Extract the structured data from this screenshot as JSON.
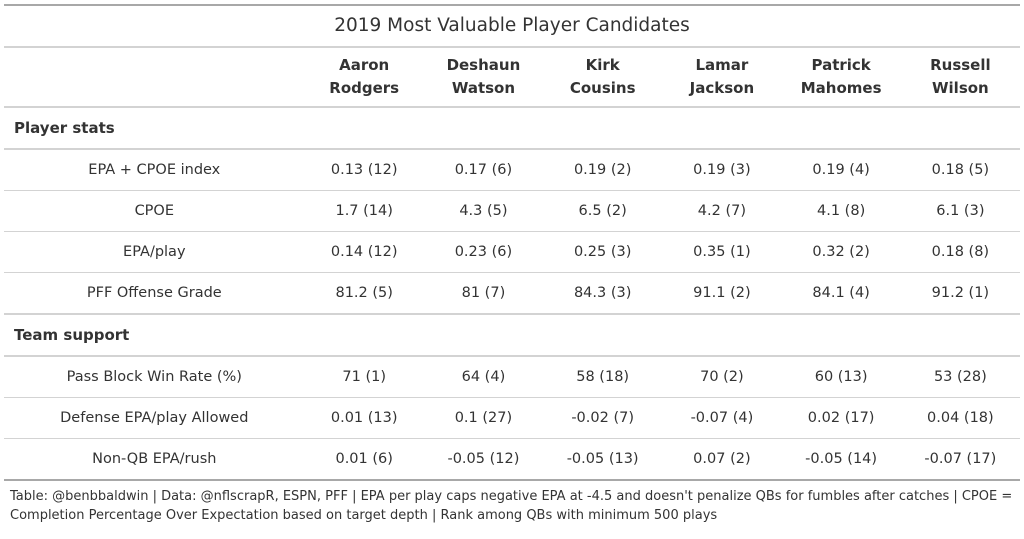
{
  "title": "2019 Most Valuable Player Candidates",
  "columns": [
    {
      "first": "Aaron",
      "last": "Rodgers"
    },
    {
      "first": "Deshaun",
      "last": "Watson"
    },
    {
      "first": "Kirk",
      "last": "Cousins"
    },
    {
      "first": "Lamar",
      "last": "Jackson"
    },
    {
      "first": "Patrick",
      "last": "Mahomes"
    },
    {
      "first": "Russell",
      "last": "Wilson"
    }
  ],
  "groups": [
    {
      "label": "Player stats",
      "rows": [
        {
          "label": "EPA + CPOE index",
          "values": [
            "0.13 (12)",
            "0.17 (6)",
            "0.19 (2)",
            "0.19 (3)",
            "0.19 (4)",
            "0.18 (5)"
          ]
        },
        {
          "label": "CPOE",
          "values": [
            "1.7 (14)",
            "4.3 (5)",
            "6.5 (2)",
            "4.2 (7)",
            "4.1 (8)",
            "6.1 (3)"
          ]
        },
        {
          "label": "EPA/play",
          "values": [
            "0.14 (12)",
            "0.23 (6)",
            "0.25 (3)",
            "0.35 (1)",
            "0.32 (2)",
            "0.18 (8)"
          ]
        },
        {
          "label": "PFF Offense Grade",
          "values": [
            "81.2 (5)",
            "81 (7)",
            "84.3 (3)",
            "91.1 (2)",
            "84.1 (4)",
            "91.2 (1)"
          ]
        }
      ]
    },
    {
      "label": "Team support",
      "rows": [
        {
          "label": "Pass Block Win Rate (%)",
          "values": [
            "71 (1)",
            "64 (4)",
            "58 (18)",
            "70 (2)",
            "60 (13)",
            "53 (28)"
          ]
        },
        {
          "label": "Defense EPA/play Allowed",
          "values": [
            "0.01 (13)",
            "0.1 (27)",
            "-0.02 (7)",
            "-0.07 (4)",
            "0.02 (17)",
            "0.04 (18)"
          ]
        },
        {
          "label": "Non-QB EPA/rush",
          "values": [
            "0.01 (6)",
            "-0.05 (12)",
            "-0.05 (13)",
            "0.07 (2)",
            "-0.05 (14)",
            "-0.07 (17)"
          ]
        }
      ]
    }
  ],
  "footnote": "Table: @benbbaldwin | Data: @nflscrapR, ESPN, PFF | EPA per play caps negative EPA at -4.5 and doesn't penalize QBs for fumbles after catches | CPOE = Completion Percentage Over Expectation based on target depth | Rank among QBs with minimum 500 plays"
}
